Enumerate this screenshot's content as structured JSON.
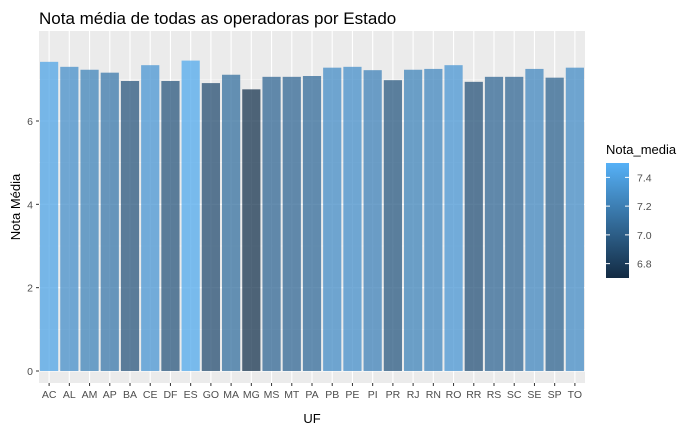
{
  "chart_data": {
    "type": "bar",
    "title": "Nota média de todas as operadoras por Estado",
    "xlabel": "UF",
    "ylabel": "Nota Média",
    "categories": [
      "AC",
      "AL",
      "AM",
      "AP",
      "BA",
      "CE",
      "DF",
      "ES",
      "GO",
      "MA",
      "MG",
      "MS",
      "MT",
      "PA",
      "PB",
      "PE",
      "PI",
      "PR",
      "RJ",
      "RN",
      "RO",
      "RR",
      "RS",
      "SC",
      "SE",
      "SP",
      "TO"
    ],
    "values": [
      7.42,
      7.3,
      7.23,
      7.16,
      6.96,
      7.34,
      6.96,
      7.45,
      6.91,
      7.11,
      6.76,
      7.06,
      7.06,
      7.08,
      7.28,
      7.3,
      7.22,
      6.98,
      7.23,
      7.25,
      7.34,
      6.94,
      7.06,
      7.06,
      7.25,
      7.04,
      7.28
    ],
    "ylim": [
      0,
      7.8
    ],
    "yticks": [
      0,
      2,
      4,
      6
    ],
    "grid": true,
    "background": "#ebebeb",
    "legend": {
      "title": "Nota_media",
      "ticks": [
        7.4,
        7.2,
        7.0,
        6.8
      ],
      "min": 6.7,
      "max": 7.5,
      "position": "right",
      "color_low": "#132b43",
      "color_high": "#56b1f7"
    },
    "bar_opacity": 0.75
  }
}
